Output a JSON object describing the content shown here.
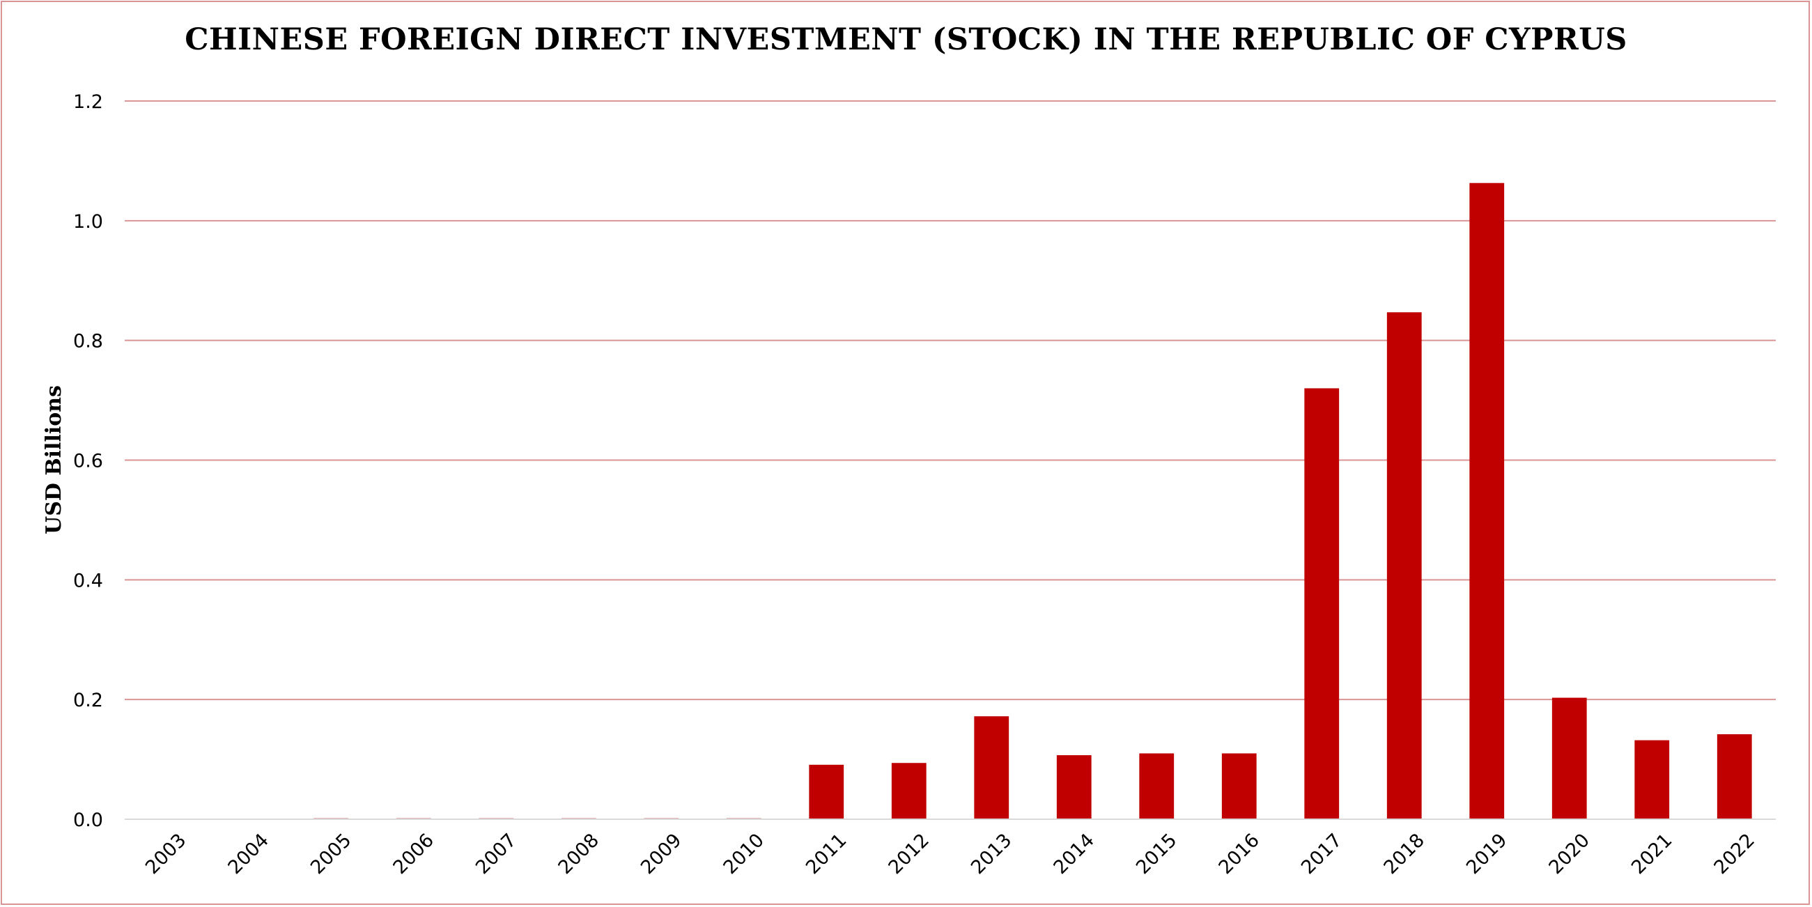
{
  "chart_data": {
    "type": "bar",
    "title": "CHINESE FOREIGN DIRECT INVESTMENT (STOCK) IN THE REPUBLIC OF CYPRUS",
    "xlabel": "",
    "ylabel": "USD Billions",
    "categories": [
      "2003",
      "2004",
      "2005",
      "2006",
      "2007",
      "2008",
      "2009",
      "2010",
      "2011",
      "2012",
      "2013",
      "2014",
      "2015",
      "2016",
      "2017",
      "2018",
      "2019",
      "2020",
      "2021",
      "2022"
    ],
    "values": [
      0.0,
      0.0,
      0.002,
      0.002,
      0.002,
      0.002,
      0.002,
      0.002,
      0.091,
      0.094,
      0.172,
      0.107,
      0.11,
      0.11,
      0.72,
      0.847,
      1.063,
      0.203,
      0.132,
      0.142
    ],
    "ylim": [
      0,
      1.2
    ],
    "yticks": [
      "0.0",
      "0.2",
      "0.4",
      "0.6",
      "0.8",
      "1.0",
      "1.2"
    ],
    "grid": true,
    "legend": "none",
    "colors": {
      "bar": "#c00000",
      "grid": "#d99594",
      "border": "#d99594",
      "axis": "#d9d9d9"
    }
  }
}
